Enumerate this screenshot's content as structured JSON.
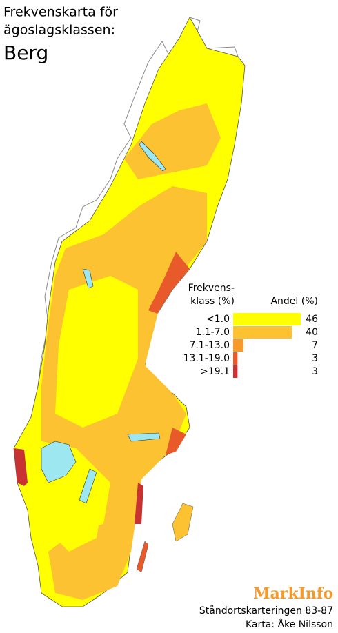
{
  "title_lines": [
    "Frekvenskarta för",
    "ägoslagsklassen:"
  ],
  "subject": "Berg",
  "class_header": [
    "Frekvens-",
    "klass (%)"
  ],
  "chart_data": {
    "type": "bar",
    "value_title": "Andel (%)",
    "categories": [
      "<1.0",
      "1.1-7.0",
      "7.1-13.0",
      "13.1-19.0",
      ">19.1"
    ],
    "values": [
      46,
      40,
      7,
      3,
      3
    ],
    "colors": [
      "#ffff00",
      "#fcc232",
      "#f79a2c",
      "#e85a2a",
      "#c83232"
    ]
  },
  "footer": {
    "brand": "MarkInfo",
    "lines": [
      "Ståndortskarteringen 83-87",
      "Karta: Åke Nilsson"
    ]
  }
}
